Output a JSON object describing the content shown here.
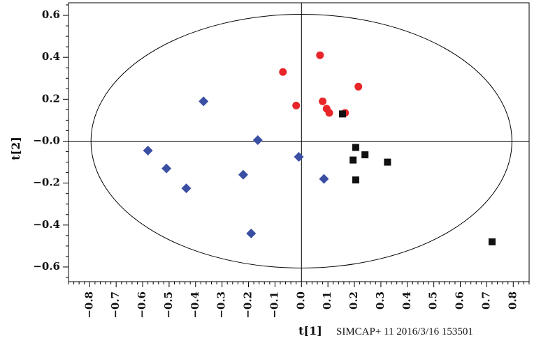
{
  "chart_data": {
    "type": "scatter",
    "title": "",
    "xlabel": "t[1]",
    "ylabel": "t[2]",
    "footer": "SIMCAP+ 11  2016/3/16 153501",
    "xlim": [
      -0.88,
      0.86
    ],
    "ylim": [
      -0.67,
      0.66
    ],
    "x_ticks": [
      -0.8,
      -0.7,
      -0.6,
      -0.5,
      -0.4,
      -0.3,
      -0.2,
      -0.1,
      0.0,
      0.1,
      0.2,
      0.3,
      0.4,
      0.5,
      0.6,
      0.7,
      0.8
    ],
    "x_tick_labels": [
      "−0.8",
      "−0.7",
      "−0.6",
      "−0.5",
      "−0.4",
      "−0.3",
      "−0.2",
      "−0.1",
      "0.0",
      "0.1",
      "0.2",
      "0.3",
      "0.4",
      "0.5",
      "0.6",
      "0.7",
      "0.8"
    ],
    "y_ticks": [
      0.6,
      0.4,
      0.2,
      0.0,
      -0.2,
      -0.4,
      -0.6
    ],
    "y_tick_labels": [
      "0.6",
      "0.4",
      "0.2",
      "−0.0",
      "−0.2",
      "−0.4",
      "−0.6"
    ],
    "ellipse": {
      "cx": 0.0,
      "cy": 0.0,
      "rx": 0.795,
      "ry": 0.605
    },
    "grid": false,
    "series": [
      {
        "marker": "diamond",
        "color": "#3a4fa3",
        "points": [
          [
            -0.37,
            0.19
          ],
          [
            -0.165,
            0.005
          ],
          [
            -0.58,
            -0.045
          ],
          [
            -0.51,
            -0.13
          ],
          [
            -0.435,
            -0.225
          ],
          [
            -0.22,
            -0.16
          ],
          [
            -0.19,
            -0.44
          ],
          [
            -0.01,
            -0.075
          ],
          [
            0.085,
            -0.18
          ]
        ]
      },
      {
        "marker": "circle",
        "color": "#e8262a",
        "points": [
          [
            -0.07,
            0.33
          ],
          [
            0.07,
            0.41
          ],
          [
            -0.02,
            0.17
          ],
          [
            0.08,
            0.19
          ],
          [
            0.095,
            0.155
          ],
          [
            0.105,
            0.135
          ],
          [
            0.165,
            0.135
          ],
          [
            0.215,
            0.26
          ]
        ]
      },
      {
        "marker": "square",
        "color": "#111111",
        "points": [
          [
            0.155,
            0.13
          ],
          [
            0.205,
            -0.03
          ],
          [
            0.24,
            -0.065
          ],
          [
            0.195,
            -0.09
          ],
          [
            0.205,
            -0.185
          ],
          [
            0.325,
            -0.1
          ],
          [
            0.72,
            -0.48
          ]
        ]
      }
    ]
  }
}
